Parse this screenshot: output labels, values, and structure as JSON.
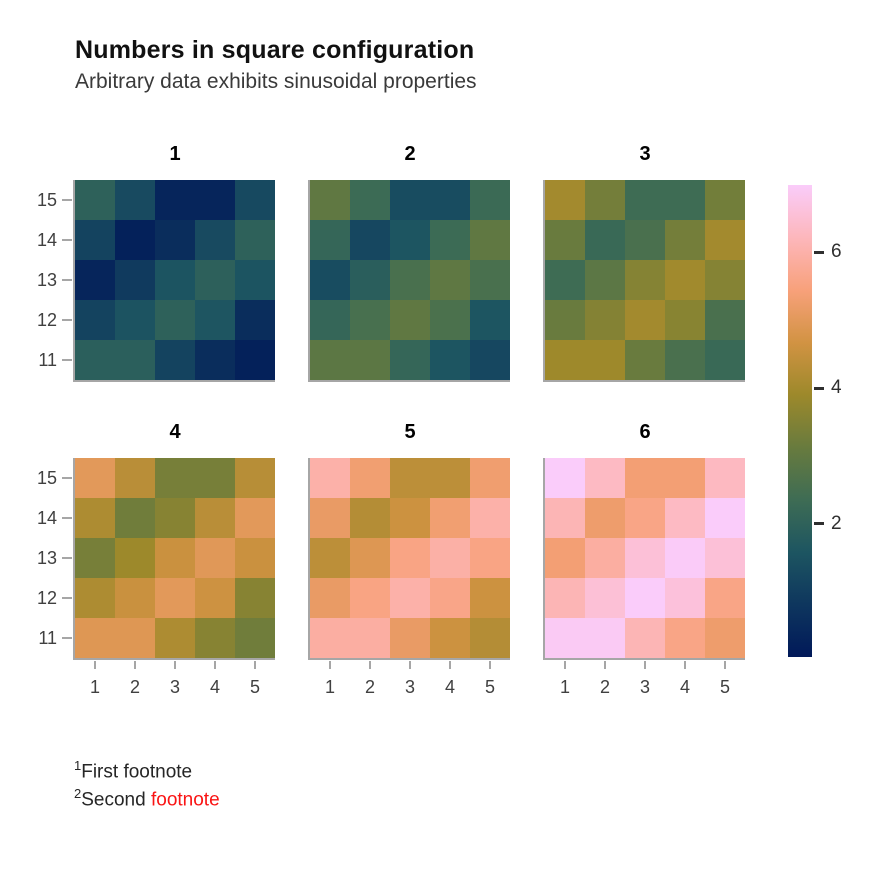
{
  "header": {
    "title": "Numbers in square configuration",
    "subtitle": "Arbitrary data exhibits sinusoidal properties"
  },
  "footnotes": [
    {
      "sup": "1",
      "segments": [
        {
          "text": "First footnote",
          "color": "#262626"
        }
      ]
    },
    {
      "sup": "2",
      "segments": [
        {
          "text": "Second ",
          "color": "#262626"
        },
        {
          "text": "footnote",
          "color": "#fa1414"
        }
      ]
    }
  ],
  "chart_data": {
    "type": "heatmap",
    "title": "Numbers in square configuration",
    "subtitle": "Arbitrary data exhibits sinusoidal properties",
    "layout": "2 rows x 3 columns of facets, shared color scale on right",
    "grid": false,
    "x": [
      1,
      2,
      3,
      4,
      5
    ],
    "y": [
      15,
      14,
      13,
      12,
      11
    ],
    "x_tick_labels": [
      "1",
      "2",
      "3",
      "4",
      "5"
    ],
    "y_tick_labels": [
      "15",
      "14",
      "13",
      "12",
      "11"
    ],
    "facets": [
      {
        "label": "1",
        "values": [
          [
            1.99,
            1.31,
            0.35,
            0.35,
            1.28
          ],
          [
            1.14,
            0.24,
            0.58,
            1.31,
            1.99
          ],
          [
            0.35,
            0.9,
            1.55,
            1.96,
            1.55
          ],
          [
            1.14,
            1.54,
            1.99,
            1.6,
            0.58
          ],
          [
            1.91,
            1.91,
            1.14,
            0.58,
            0.24
          ]
        ]
      },
      {
        "label": "2",
        "values": [
          [
            2.99,
            2.31,
            1.35,
            1.35,
            2.28
          ],
          [
            2.14,
            1.24,
            1.58,
            2.31,
            2.99
          ],
          [
            1.35,
            1.9,
            2.55,
            2.96,
            2.55
          ],
          [
            2.14,
            2.54,
            2.99,
            2.6,
            1.58
          ],
          [
            2.91,
            2.91,
            2.14,
            1.58,
            1.24
          ]
        ]
      },
      {
        "label": "3",
        "values": [
          [
            3.99,
            3.31,
            2.35,
            2.35,
            3.28
          ],
          [
            3.14,
            2.24,
            2.58,
            3.31,
            3.99
          ],
          [
            2.35,
            2.9,
            3.55,
            3.96,
            3.55
          ],
          [
            3.14,
            3.54,
            3.99,
            3.6,
            2.58
          ],
          [
            3.91,
            3.91,
            3.14,
            2.58,
            2.24
          ]
        ]
      },
      {
        "label": "4",
        "values": [
          [
            4.99,
            4.31,
            3.35,
            3.35,
            4.28
          ],
          [
            4.14,
            3.24,
            3.58,
            4.31,
            4.99
          ],
          [
            3.35,
            3.9,
            4.55,
            4.96,
            4.55
          ],
          [
            4.14,
            4.54,
            4.99,
            4.6,
            3.58
          ],
          [
            4.91,
            4.91,
            4.14,
            3.58,
            3.24
          ]
        ]
      },
      {
        "label": "5",
        "values": [
          [
            5.99,
            5.31,
            4.35,
            4.35,
            5.28
          ],
          [
            5.14,
            4.24,
            4.58,
            5.31,
            5.99
          ],
          [
            4.35,
            4.9,
            5.55,
            5.96,
            5.55
          ],
          [
            5.14,
            5.54,
            5.99,
            5.6,
            4.58
          ],
          [
            5.91,
            5.91,
            5.14,
            4.58,
            4.24
          ]
        ]
      },
      {
        "label": "6",
        "values": [
          [
            6.99,
            6.31,
            5.35,
            5.35,
            6.28
          ],
          [
            6.14,
            5.24,
            5.58,
            6.31,
            6.99
          ],
          [
            5.35,
            5.9,
            6.55,
            6.96,
            6.55
          ],
          [
            6.14,
            6.54,
            6.99,
            6.6,
            5.58
          ],
          [
            6.91,
            6.91,
            6.14,
            5.58,
            5.24
          ]
        ]
      }
    ],
    "colorbar": {
      "position": "right",
      "domain": [
        0.04,
        6.99
      ],
      "tick_values": [
        2,
        4,
        6
      ],
      "tick_labels": [
        "2",
        "4",
        "6"
      ],
      "colormap": "batlow",
      "stops": [
        "#011959",
        "#0E365E",
        "#1D5561",
        "#3E6C54",
        "#687B3E",
        "#9D892B",
        "#D29343",
        "#F8A17B",
        "#FDB7BC",
        "#FACCFA"
      ]
    }
  }
}
